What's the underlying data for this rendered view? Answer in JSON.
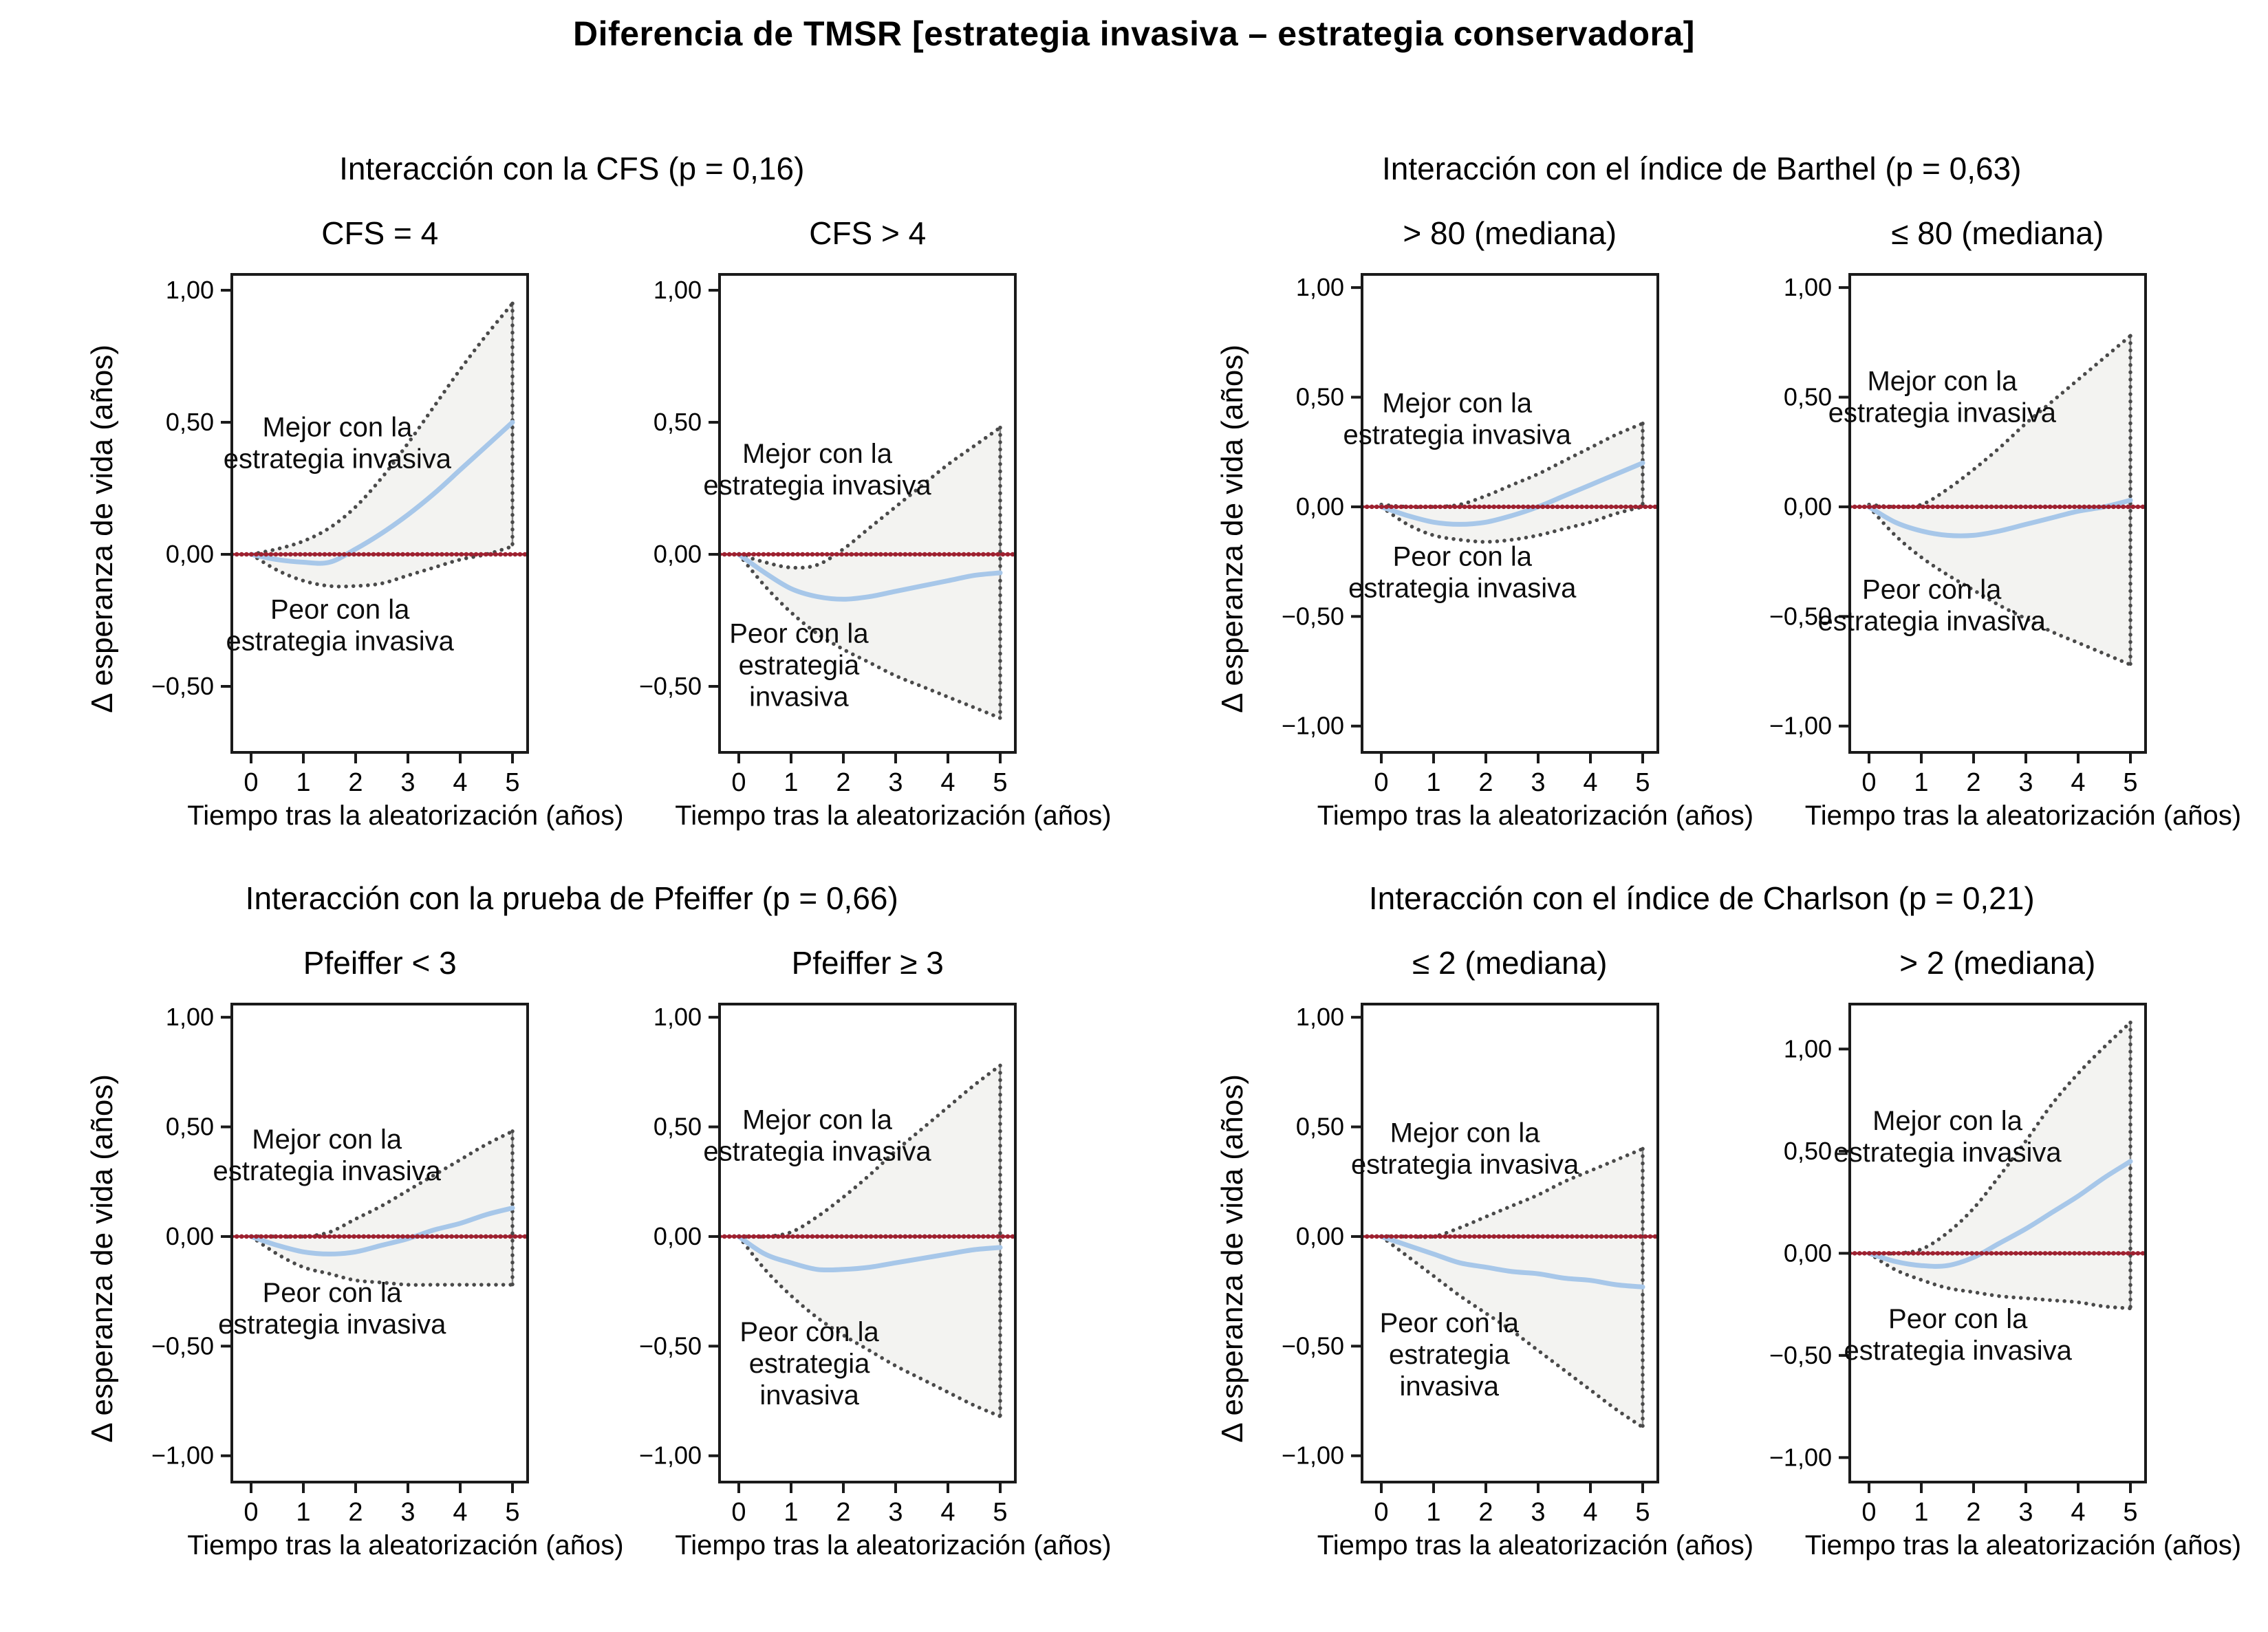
{
  "figure_title": "Diferencia de TMSR [estrategia invasiva – estrategia conservadora]",
  "axis": {
    "ylabel": "Δ esperanza de vida (años)",
    "xlabel": "Tiempo tras la aleatorización (años)"
  },
  "colors": {
    "estimate_line": "#a7c7e9",
    "ci_edge": "#4a4a4a",
    "band_fill": "#f3f3f1",
    "reference_line": "#9e2130",
    "axis": "#1a1a1a",
    "annotation_text": "#0d0d0d",
    "background": "#ffffff"
  },
  "groups": [
    {
      "title": "Interacción con la CFS (p = 0,16)",
      "panel_indices": [
        0,
        1
      ]
    },
    {
      "title": "Interacción con el índice de Barthel (p = 0,63)",
      "panel_indices": [
        2,
        3
      ]
    },
    {
      "title": "Interacción con la prueba de Pfeiffer (p = 0,66)",
      "panel_indices": [
        4,
        5
      ]
    },
    {
      "title": "Interacción con el índice de Charlson (p = 0,21)",
      "panel_indices": [
        6,
        7
      ]
    }
  ],
  "chart_data": [
    {
      "type": "line",
      "subtitle": "CFS = 4",
      "group": "Interacción con la CFS (p = 0,16)",
      "xlabel": "Tiempo tras la aleatorización (años)",
      "ylabel": "Δ esperanza de vida (años)",
      "x": [
        0,
        0.5,
        1,
        1.5,
        2,
        2.5,
        3,
        3.5,
        4,
        4.5,
        5
      ],
      "series": [
        {
          "name": "estimate",
          "values": [
            0,
            -0.02,
            -0.03,
            -0.03,
            0.02,
            0.08,
            0.15,
            0.23,
            0.32,
            0.41,
            0.5
          ]
        },
        {
          "name": "ci_upper",
          "values": [
            0,
            0.02,
            0.05,
            0.1,
            0.18,
            0.29,
            0.42,
            0.56,
            0.7,
            0.83,
            0.95
          ]
        },
        {
          "name": "ci_lower",
          "values": [
            0,
            -0.06,
            -0.1,
            -0.12,
            -0.12,
            -0.11,
            -0.08,
            -0.05,
            -0.02,
            0.0,
            0.03
          ]
        }
      ],
      "reference_y": 0,
      "ylim": [
        -0.75,
        1.06
      ],
      "yticks": [
        1,
        0.5,
        0,
        -0.5
      ],
      "ytick_labels": [
        "1,00",
        "0,50",
        "0,00",
        "−0,50"
      ],
      "xticks": [
        0,
        1,
        2,
        3,
        4,
        5
      ],
      "xtick_labels": [
        "0",
        "1",
        "2",
        "3",
        "4",
        "5"
      ],
      "annotations": {
        "better": {
          "text": "Mejor con la\nestrategia invasiva",
          "x": 1.65,
          "y": 0.42
        },
        "worse": {
          "text": "Peor con la\nestrategia invasiva",
          "x": 1.7,
          "y": -0.27
        }
      }
    },
    {
      "type": "line",
      "subtitle": "CFS > 4",
      "group": "Interacción con la CFS (p = 0,16)",
      "xlabel": "Tiempo tras la aleatorización (años)",
      "ylabel": "Δ esperanza de vida (años)",
      "x": [
        0,
        0.5,
        1,
        1.5,
        2,
        2.5,
        3,
        3.5,
        4,
        4.5,
        5
      ],
      "series": [
        {
          "name": "estimate",
          "values": [
            0,
            -0.07,
            -0.13,
            -0.16,
            -0.17,
            -0.16,
            -0.14,
            -0.12,
            -0.1,
            -0.08,
            -0.07
          ]
        },
        {
          "name": "ci_upper",
          "values": [
            0,
            -0.03,
            -0.05,
            -0.04,
            0.02,
            0.1,
            0.18,
            0.26,
            0.34,
            0.41,
            0.48
          ]
        },
        {
          "name": "ci_lower",
          "values": [
            0,
            -0.12,
            -0.22,
            -0.3,
            -0.36,
            -0.41,
            -0.46,
            -0.5,
            -0.54,
            -0.58,
            -0.62
          ]
        }
      ],
      "reference_y": 0,
      "ylim": [
        -0.75,
        1.06
      ],
      "yticks": [
        1,
        0.5,
        0,
        -0.5
      ],
      "ytick_labels": [
        "1,00",
        "0,50",
        "0,00",
        "−0,50"
      ],
      "xticks": [
        0,
        1,
        2,
        3,
        4,
        5
      ],
      "xtick_labels": [
        "0",
        "1",
        "2",
        "3",
        "4",
        "5"
      ],
      "annotations": {
        "better": {
          "text": "Mejor con la\nestrategia invasiva",
          "x": 1.5,
          "y": 0.32
        },
        "worse": {
          "text": "Peor con la\nestrategia\ninvasiva",
          "x": 1.15,
          "y": -0.42
        }
      }
    },
    {
      "type": "line",
      "subtitle": "> 80 (mediana)",
      "group": "Interacción con el índice de Barthel (p = 0,63)",
      "xlabel": "Tiempo tras la aleatorización (años)",
      "ylabel": "Δ esperanza de vida (años)",
      "x": [
        0,
        0.5,
        1,
        1.5,
        2,
        2.5,
        3,
        3.5,
        4,
        4.5,
        5
      ],
      "series": [
        {
          "name": "estimate",
          "values": [
            0,
            -0.04,
            -0.07,
            -0.08,
            -0.07,
            -0.04,
            0.0,
            0.05,
            0.1,
            0.15,
            0.2
          ]
        },
        {
          "name": "ci_upper",
          "values": [
            0.01,
            0.0,
            0.0,
            0.01,
            0.05,
            0.1,
            0.15,
            0.21,
            0.27,
            0.33,
            0.38
          ]
        },
        {
          "name": "ci_lower",
          "values": [
            0,
            -0.08,
            -0.13,
            -0.15,
            -0.16,
            -0.15,
            -0.13,
            -0.1,
            -0.07,
            -0.03,
            0.0
          ]
        }
      ],
      "reference_y": 0,
      "ylim": [
        -1.12,
        1.06
      ],
      "yticks": [
        1,
        0.5,
        0,
        -0.5,
        -1
      ],
      "ytick_labels": [
        "1,00",
        "0,50",
        "0,00",
        "−0,50",
        "−1,00"
      ],
      "xticks": [
        0,
        1,
        2,
        3,
        4,
        5
      ],
      "xtick_labels": [
        "0",
        "1",
        "2",
        "3",
        "4",
        "5"
      ],
      "annotations": {
        "better": {
          "text": "Mejor con la\nestrategia invasiva",
          "x": 1.45,
          "y": 0.4
        },
        "worse": {
          "text": "Peor con la\nestrategia invasiva",
          "x": 1.55,
          "y": -0.3
        }
      }
    },
    {
      "type": "line",
      "subtitle": "≤ 80 (mediana)",
      "group": "Interacción con el índice de Barthel (p = 0,63)",
      "xlabel": "Tiempo tras la aleatorización (años)",
      "ylabel": "Δ esperanza de vida (años)",
      "x": [
        0,
        0.5,
        1,
        1.5,
        2,
        2.5,
        3,
        3.5,
        4,
        4.5,
        5
      ],
      "series": [
        {
          "name": "estimate",
          "values": [
            0,
            -0.07,
            -0.11,
            -0.13,
            -0.13,
            -0.11,
            -0.08,
            -0.05,
            -0.02,
            0.0,
            0.03
          ]
        },
        {
          "name": "ci_upper",
          "values": [
            0.01,
            0.0,
            0.01,
            0.08,
            0.17,
            0.27,
            0.38,
            0.48,
            0.58,
            0.68,
            0.78
          ]
        },
        {
          "name": "ci_lower",
          "values": [
            0,
            -0.13,
            -0.23,
            -0.31,
            -0.38,
            -0.45,
            -0.51,
            -0.57,
            -0.62,
            -0.67,
            -0.72
          ]
        }
      ],
      "reference_y": 0,
      "ylim": [
        -1.12,
        1.06
      ],
      "yticks": [
        1,
        0.5,
        0,
        -0.5,
        -1
      ],
      "ytick_labels": [
        "1,00",
        "0,50",
        "0,00",
        "−0,50",
        "−1,00"
      ],
      "xticks": [
        0,
        1,
        2,
        3,
        4,
        5
      ],
      "xtick_labels": [
        "0",
        "1",
        "2",
        "3",
        "4",
        "5"
      ],
      "annotations": {
        "better": {
          "text": "Mejor con la\nestrategia invasiva",
          "x": 1.4,
          "y": 0.5
        },
        "worse": {
          "text": "Peor con la\nestrategia invasiva",
          "x": 1.2,
          "y": -0.45
        }
      }
    },
    {
      "type": "line",
      "subtitle": "Pfeiffer < 3",
      "group": "Interacción con la prueba de Pfeiffer (p = 0,66)",
      "xlabel": "Tiempo tras la aleatorización (años)",
      "ylabel": "Δ esperanza de vida (años)",
      "x": [
        0,
        0.5,
        1,
        1.5,
        2,
        2.5,
        3,
        3.5,
        4,
        4.5,
        5
      ],
      "series": [
        {
          "name": "estimate",
          "values": [
            0,
            -0.04,
            -0.07,
            -0.08,
            -0.07,
            -0.04,
            -0.01,
            0.03,
            0.06,
            0.1,
            0.13
          ]
        },
        {
          "name": "ci_upper",
          "values": [
            0,
            0.0,
            0.0,
            0.02,
            0.08,
            0.14,
            0.21,
            0.28,
            0.35,
            0.42,
            0.48
          ]
        },
        {
          "name": "ci_lower",
          "values": [
            0,
            -0.08,
            -0.14,
            -0.17,
            -0.2,
            -0.21,
            -0.22,
            -0.22,
            -0.22,
            -0.22,
            -0.22
          ]
        }
      ],
      "reference_y": 0,
      "ylim": [
        -1.12,
        1.06
      ],
      "yticks": [
        1,
        0.5,
        0,
        -0.5,
        -1
      ],
      "ytick_labels": [
        "1,00",
        "0,50",
        "0,00",
        "−0,50",
        "−1,00"
      ],
      "xticks": [
        0,
        1,
        2,
        3,
        4,
        5
      ],
      "xtick_labels": [
        "0",
        "1",
        "2",
        "3",
        "4",
        "5"
      ],
      "annotations": {
        "better": {
          "text": "Mejor con la\nestrategia invasiva",
          "x": 1.45,
          "y": 0.37
        },
        "worse": {
          "text": "Peor con la\nestrategia invasiva",
          "x": 1.55,
          "y": -0.33
        }
      }
    },
    {
      "type": "line",
      "subtitle": "Pfeiffer ≥ 3",
      "group": "Interacción con la prueba de Pfeiffer (p = 0,66)",
      "xlabel": "Tiempo tras la aleatorización (años)",
      "ylabel": "Δ esperanza de vida (años)",
      "x": [
        0,
        0.5,
        1,
        1.5,
        2,
        2.5,
        3,
        3.5,
        4,
        4.5,
        5
      ],
      "series": [
        {
          "name": "estimate",
          "values": [
            0,
            -0.08,
            -0.12,
            -0.15,
            -0.15,
            -0.14,
            -0.12,
            -0.1,
            -0.08,
            -0.06,
            -0.05
          ]
        },
        {
          "name": "ci_upper",
          "values": [
            0,
            0.0,
            0.02,
            0.09,
            0.18,
            0.28,
            0.39,
            0.49,
            0.59,
            0.69,
            0.78
          ]
        },
        {
          "name": "ci_lower",
          "values": [
            0,
            -0.15,
            -0.27,
            -0.37,
            -0.45,
            -0.52,
            -0.59,
            -0.65,
            -0.71,
            -0.77,
            -0.82
          ]
        }
      ],
      "reference_y": 0,
      "ylim": [
        -1.12,
        1.06
      ],
      "yticks": [
        1,
        0.5,
        0,
        -0.5,
        -1
      ],
      "ytick_labels": [
        "1,00",
        "0,50",
        "0,00",
        "−0,50",
        "−1,00"
      ],
      "xticks": [
        0,
        1,
        2,
        3,
        4,
        5
      ],
      "xtick_labels": [
        "0",
        "1",
        "2",
        "3",
        "4",
        "5"
      ],
      "annotations": {
        "better": {
          "text": "Mejor con la\nestrategia invasiva",
          "x": 1.5,
          "y": 0.46
        },
        "worse": {
          "text": "Peor con la\nestrategia\ninvasiva",
          "x": 1.35,
          "y": -0.58
        }
      }
    },
    {
      "type": "line",
      "subtitle": "≤ 2 (mediana)",
      "group": "Interacción con el índice de Charlson (p = 0,21)",
      "xlabel": "Tiempo tras la aleatorización (años)",
      "ylabel": "Δ esperanza de vida (años)",
      "x": [
        0,
        0.5,
        1,
        1.5,
        2,
        2.5,
        3,
        3.5,
        4,
        4.5,
        5
      ],
      "series": [
        {
          "name": "estimate",
          "values": [
            0,
            -0.04,
            -0.08,
            -0.12,
            -0.14,
            -0.16,
            -0.17,
            -0.19,
            -0.2,
            -0.22,
            -0.23
          ]
        },
        {
          "name": "ci_upper",
          "values": [
            0,
            0.0,
            0.0,
            0.04,
            0.09,
            0.14,
            0.19,
            0.25,
            0.3,
            0.35,
            0.4
          ]
        },
        {
          "name": "ci_lower",
          "values": [
            0,
            -0.09,
            -0.18,
            -0.27,
            -0.35,
            -0.43,
            -0.52,
            -0.61,
            -0.7,
            -0.79,
            -0.87
          ]
        }
      ],
      "reference_y": 0,
      "ylim": [
        -1.12,
        1.06
      ],
      "yticks": [
        1,
        0.5,
        0,
        -0.5,
        -1
      ],
      "ytick_labels": [
        "1,00",
        "0,50",
        "0,00",
        "−0,50",
        "−1,00"
      ],
      "xticks": [
        0,
        1,
        2,
        3,
        4,
        5
      ],
      "xtick_labels": [
        "0",
        "1",
        "2",
        "3",
        "4",
        "5"
      ],
      "annotations": {
        "better": {
          "text": "Mejor con la\nestrategia invasiva",
          "x": 1.6,
          "y": 0.4
        },
        "worse": {
          "text": "Peor con la\nestrategia\ninvasiva",
          "x": 1.3,
          "y": -0.54
        }
      }
    },
    {
      "type": "line",
      "subtitle": "> 2 (mediana)",
      "group": "Interacción con el índice de Charlson (p = 0,21)",
      "xlabel": "Tiempo tras la aleatorización (años)",
      "ylabel": "Δ esperanza de vida (años)",
      "x": [
        0,
        0.5,
        1,
        1.5,
        2,
        2.5,
        3,
        3.5,
        4,
        4.5,
        5
      ],
      "series": [
        {
          "name": "estimate",
          "values": [
            0,
            -0.04,
            -0.06,
            -0.06,
            -0.02,
            0.05,
            0.12,
            0.2,
            0.28,
            0.37,
            0.45
          ]
        },
        {
          "name": "ci_upper",
          "values": [
            0,
            0.0,
            0.02,
            0.1,
            0.22,
            0.38,
            0.55,
            0.73,
            0.88,
            1.01,
            1.13
          ]
        },
        {
          "name": "ci_lower",
          "values": [
            0,
            -0.08,
            -0.13,
            -0.17,
            -0.19,
            -0.21,
            -0.22,
            -0.23,
            -0.24,
            -0.26,
            -0.27
          ]
        }
      ],
      "reference_y": 0,
      "ylim": [
        -1.12,
        1.22
      ],
      "yticks": [
        1,
        0.5,
        0,
        -0.5,
        -1
      ],
      "ytick_labels": [
        "1,00",
        "0,50",
        "0,00",
        "−0,50",
        "−1,00"
      ],
      "xticks": [
        0,
        1,
        2,
        3,
        4,
        5
      ],
      "xtick_labels": [
        "0",
        "1",
        "2",
        "3",
        "4",
        "5"
      ],
      "annotations": {
        "better": {
          "text": "Mejor con la\nestrategia invasiva",
          "x": 1.5,
          "y": 0.57
        },
        "worse": {
          "text": "Peor con la\nestrategia invasiva",
          "x": 1.7,
          "y": -0.4
        }
      }
    }
  ]
}
